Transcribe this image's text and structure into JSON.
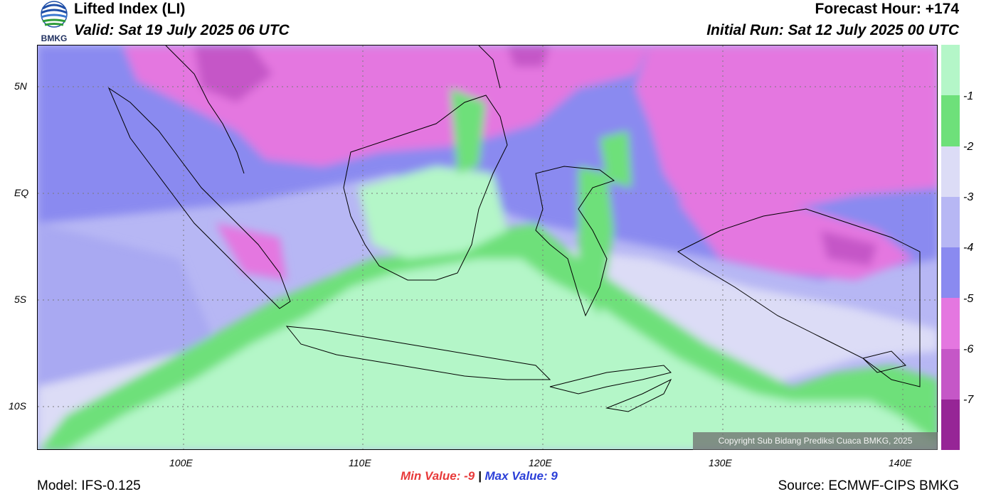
{
  "header": {
    "title": "Lifted Index (LI)",
    "valid": "Valid: Sat 19 July 2025 06 UTC",
    "forecast_hour": "Forecast Hour: +174",
    "initial_run": "Initial Run: Sat 12 July 2025 00 UTC"
  },
  "logo": {
    "text": "BMKG",
    "icon": "bmkg-logo"
  },
  "axes": {
    "lat_labels": [
      "5N",
      "EQ",
      "5S",
      "10S"
    ],
    "lon_labels": [
      "100E",
      "110E",
      "120E",
      "130E",
      "140E"
    ]
  },
  "legend": {
    "labels": [
      "-1",
      "-2",
      "-3",
      "-4",
      "-5",
      "-6",
      "-7"
    ],
    "colors": [
      "#b4f6c8",
      "#6ee07a",
      "#dcdcf6",
      "#b7b7f4",
      "#8a8af0",
      "#e477e0",
      "#c557c7",
      "#962596"
    ]
  },
  "stats": {
    "min_label": "Min Value:",
    "min_value": "-9",
    "separator": "|",
    "max_label": "Max Value:",
    "max_value": "9"
  },
  "footer": {
    "model": "Model: IFS-0.125",
    "source": "Source: ECMWF-CIPS BMKG",
    "copyright": "Copyright Sub Bidang Prediksi Cuaca BMKG, 2025"
  }
}
